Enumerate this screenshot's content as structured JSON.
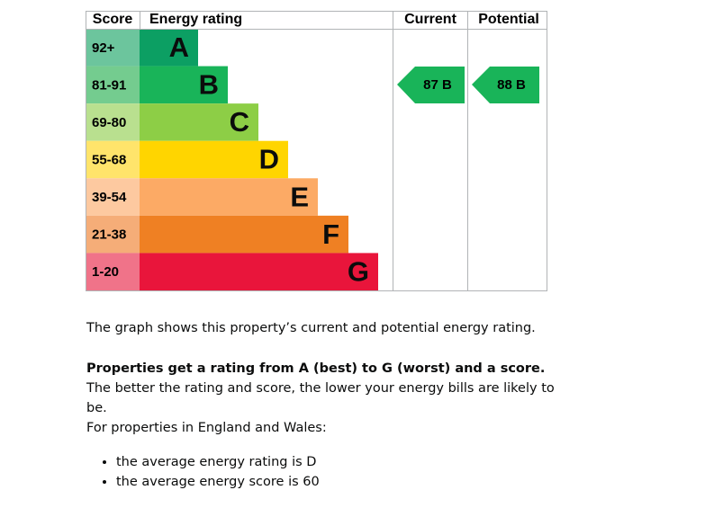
{
  "table": {
    "header": [
      "Score",
      "Energy rating",
      "Current",
      "Potential"
    ],
    "bands": [
      {
        "score": "92+",
        "letter": "A",
        "color": "#0c9f63",
        "score_color": "#6cc59d"
      },
      {
        "score": "81-91",
        "letter": "B",
        "color": "#19b459",
        "score_color": "#74cc8f"
      },
      {
        "score": "69-80",
        "letter": "C",
        "color": "#8dce46",
        "score_color": "#b9e08f"
      },
      {
        "score": "55-68",
        "letter": "D",
        "color": "#ffd500",
        "score_color": "#ffe46b"
      },
      {
        "score": "39-54",
        "letter": "E",
        "color": "#fcaa65",
        "score_color": "#fdc9a0"
      },
      {
        "score": "21-38",
        "letter": "F",
        "color": "#ef8023",
        "score_color": "#f5ad78"
      },
      {
        "score": "1-20",
        "letter": "G",
        "color": "#e9153b",
        "score_color": "#f07389"
      }
    ],
    "current": {
      "label": "87 B",
      "color": "#19b459"
    },
    "potential": {
      "label": "88 B",
      "color": "#19b459"
    }
  },
  "text": {
    "paragraph1": "The graph shows this property’s current and potential energy rating.",
    "paragraph2_bold": "Properties get a rating from A (best) to G (worst) and a score.",
    "paragraph2_rest": " The better the rating and score, the lower your energy bills are likely to be.",
    "paragraph3": "For properties in England and Wales:",
    "bullets": [
      "the average energy rating is D",
      "the average energy score is 60"
    ]
  }
}
